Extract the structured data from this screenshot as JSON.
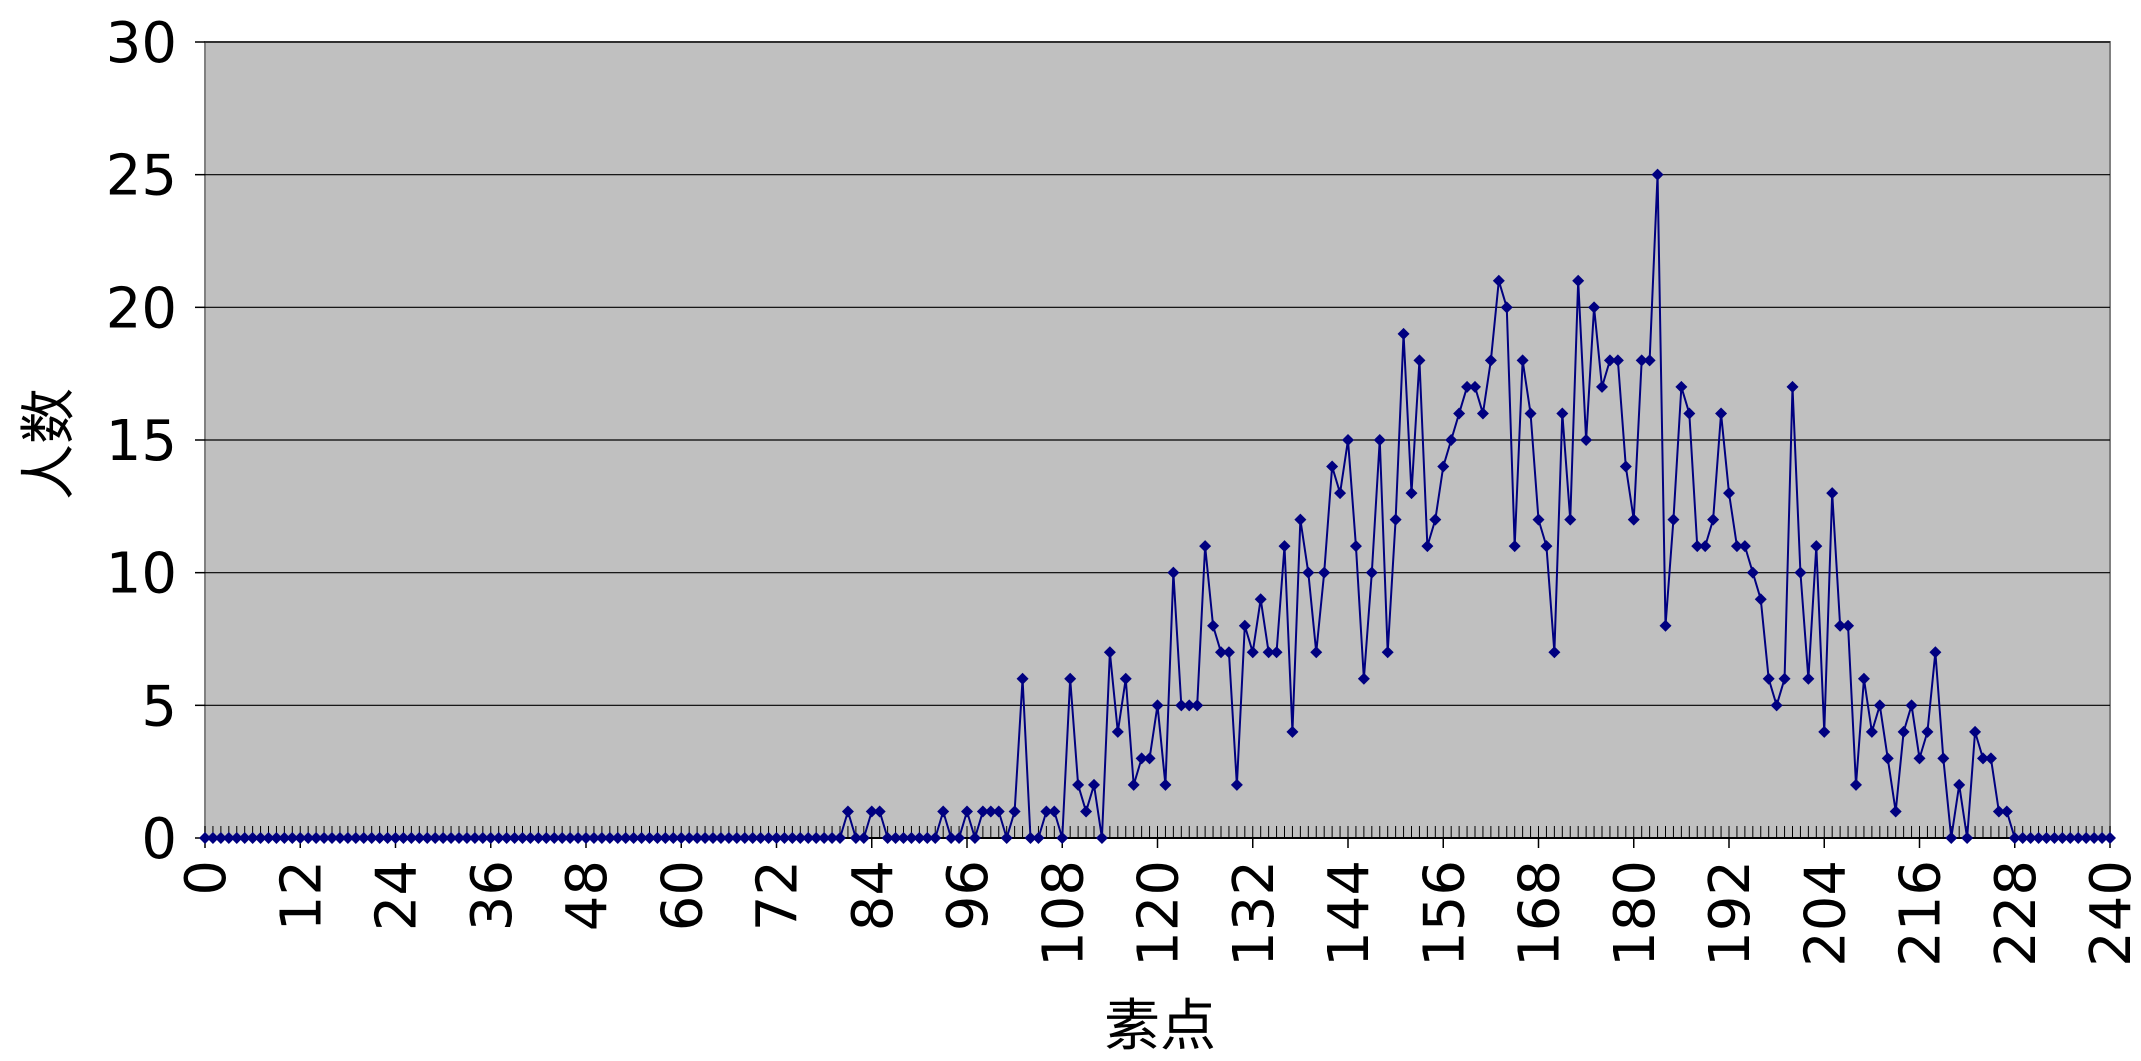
{
  "chart_data": {
    "type": "line",
    "xlabel": "素点",
    "ylabel": "人数",
    "x": [
      0,
      1,
      2,
      3,
      4,
      5,
      6,
      7,
      8,
      9,
      10,
      11,
      12,
      13,
      14,
      15,
      16,
      17,
      18,
      19,
      20,
      21,
      22,
      23,
      24,
      25,
      26,
      27,
      28,
      29,
      30,
      31,
      32,
      33,
      34,
      35,
      36,
      37,
      38,
      39,
      40,
      41,
      42,
      43,
      44,
      45,
      46,
      47,
      48,
      49,
      50,
      51,
      52,
      53,
      54,
      55,
      56,
      57,
      58,
      59,
      60,
      61,
      62,
      63,
      64,
      65,
      66,
      67,
      68,
      69,
      70,
      71,
      72,
      73,
      74,
      75,
      76,
      77,
      78,
      79,
      80,
      81,
      82,
      83,
      84,
      85,
      86,
      87,
      88,
      89,
      90,
      91,
      92,
      93,
      94,
      95,
      96,
      97,
      98,
      99,
      100,
      101,
      102,
      103,
      104,
      105,
      106,
      107,
      108,
      109,
      110,
      111,
      112,
      113,
      114,
      115,
      116,
      117,
      118,
      119,
      120,
      121,
      122,
      123,
      124,
      125,
      126,
      127,
      128,
      129,
      130,
      131,
      132,
      133,
      134,
      135,
      136,
      137,
      138,
      139,
      140,
      141,
      142,
      143,
      144,
      145,
      146,
      147,
      148,
      149,
      150,
      151,
      152,
      153,
      154,
      155,
      156,
      157,
      158,
      159,
      160,
      161,
      162,
      163,
      164,
      165,
      166,
      167,
      168,
      169,
      170,
      171,
      172,
      173,
      174,
      175,
      176,
      177,
      178,
      179,
      180,
      181,
      182,
      183,
      184,
      185,
      186,
      187,
      188,
      189,
      190,
      191,
      192,
      193,
      194,
      195,
      196,
      197,
      198,
      199,
      200,
      201,
      202,
      203,
      204,
      205,
      206,
      207,
      208,
      209,
      210,
      211,
      212,
      213,
      214,
      215,
      216,
      217,
      218,
      219,
      220,
      221,
      222,
      223,
      224,
      225,
      226,
      227,
      228,
      229,
      230,
      231,
      232,
      233,
      234,
      235,
      236,
      237,
      238,
      239,
      240
    ],
    "series": [
      {
        "color": "#000080",
        "values": [
          0,
          0,
          0,
          0,
          0,
          0,
          0,
          0,
          0,
          0,
          0,
          0,
          0,
          0,
          0,
          0,
          0,
          0,
          0,
          0,
          0,
          0,
          0,
          0,
          0,
          0,
          0,
          0,
          0,
          0,
          0,
          0,
          0,
          0,
          0,
          0,
          0,
          0,
          0,
          0,
          0,
          0,
          0,
          0,
          0,
          0,
          0,
          0,
          0,
          0,
          0,
          0,
          0,
          0,
          0,
          0,
          0,
          0,
          0,
          0,
          0,
          0,
          0,
          0,
          0,
          0,
          0,
          0,
          0,
          0,
          0,
          0,
          0,
          0,
          0,
          0,
          0,
          0,
          0,
          0,
          0,
          1,
          0,
          0,
          1,
          1,
          0,
          0,
          0,
          0,
          0,
          0,
          0,
          1,
          0,
          0,
          1,
          0,
          1,
          1,
          1,
          0,
          1,
          6,
          0,
          0,
          1,
          1,
          0,
          6,
          2,
          1,
          2,
          0,
          7,
          4,
          6,
          2,
          3,
          3,
          5,
          2,
          10,
          5,
          5,
          5,
          11,
          8,
          7,
          7,
          2,
          8,
          7,
          9,
          7,
          7,
          11,
          4,
          12,
          10,
          7,
          10,
          14,
          13,
          15,
          11,
          6,
          10,
          15,
          7,
          12,
          19,
          13,
          18,
          11,
          12,
          14,
          15,
          16,
          17,
          17,
          16,
          18,
          21,
          20,
          11,
          18,
          16,
          12,
          11,
          7,
          16,
          12,
          21,
          15,
          20,
          17,
          18,
          18,
          14,
          12,
          18,
          18,
          25,
          8,
          12,
          17,
          16,
          11,
          11,
          12,
          16,
          13,
          11,
          11,
          10,
          9,
          6,
          5,
          6,
          17,
          10,
          6,
          11,
          4,
          13,
          8,
          8,
          2,
          6,
          4,
          5,
          3,
          1,
          4,
          5,
          3,
          4,
          7,
          3,
          0,
          2,
          0,
          4,
          3,
          3,
          1,
          1,
          0,
          0,
          0,
          0,
          0,
          0,
          0,
          0,
          0,
          0,
          0,
          0,
          0
        ]
      }
    ],
    "xlim": [
      0,
      240
    ],
    "xticks": [
      0,
      12,
      24,
      36,
      48,
      60,
      72,
      84,
      96,
      108,
      120,
      132,
      144,
      156,
      168,
      180,
      192,
      204,
      216,
      228,
      240
    ],
    "ylim": [
      0,
      30
    ],
    "yticks": [
      0,
      5,
      10,
      15,
      20,
      25,
      30
    ],
    "grid": true
  }
}
